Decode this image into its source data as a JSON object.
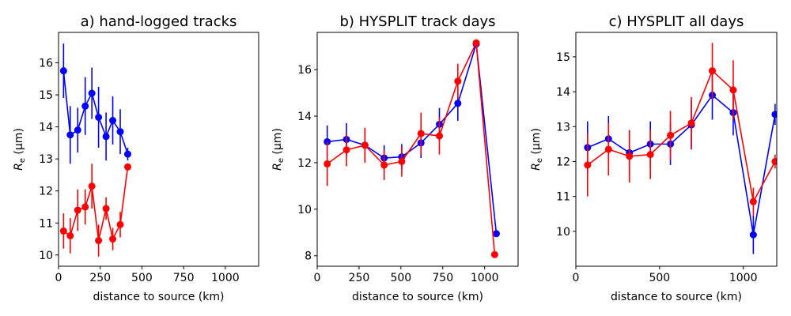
{
  "chart_data": [
    {
      "type": "line",
      "title": "a) hand-logged tracks",
      "xlabel": "distance to source (km)",
      "ylabel": "R_e (μm)",
      "ylabel_main": "R",
      "ylabel_sub": "e",
      "ylabel_unit": " (μm)",
      "xlim": [
        0,
        1200
      ],
      "ylim": [
        9.65,
        16.95
      ],
      "xticks": [
        0,
        250,
        500,
        750,
        1000
      ],
      "xtick_labels": [
        "0",
        "250",
        "500",
        "750",
        "1000"
      ],
      "yticks": [
        10,
        11,
        12,
        13,
        14,
        15,
        16
      ],
      "ytick_labels": [
        "10",
        "11",
        "12",
        "13",
        "14",
        "15",
        "16"
      ],
      "series": [
        {
          "name": "blue",
          "color": "#0000ff",
          "x": [
            30,
            70,
            115,
            160,
            200,
            240,
            285,
            325,
            370,
            415
          ],
          "y": [
            15.75,
            13.75,
            13.9,
            14.65,
            15.05,
            14.3,
            13.7,
            14.2,
            13.85,
            13.15
          ],
          "err": [
            0.85,
            0.9,
            0.7,
            0.9,
            0.8,
            0.95,
            0.75,
            0.75,
            0.7,
            0.2
          ]
        },
        {
          "name": "red",
          "color": "#ff0000",
          "x": [
            30,
            70,
            115,
            160,
            200,
            240,
            285,
            325,
            370,
            415
          ],
          "y": [
            10.75,
            10.6,
            11.4,
            11.5,
            12.15,
            10.45,
            11.45,
            10.5,
            10.95,
            12.75
          ],
          "err": [
            0.55,
            0.55,
            0.65,
            0.55,
            0.7,
            0.5,
            0.35,
            0.35,
            0.4,
            0.1
          ]
        }
      ]
    },
    {
      "type": "line",
      "title": "b) HYSPLIT track days",
      "xlabel": "distance to source (km)",
      "ylabel": "R_e (μm)",
      "ylabel_main": "R",
      "ylabel_sub": "e",
      "ylabel_unit": " (μm)",
      "xlim": [
        0,
        1200
      ],
      "ylim": [
        7.55,
        17.6
      ],
      "xticks": [
        0,
        250,
        500,
        750,
        1000
      ],
      "xtick_labels": [
        "0",
        "250",
        "500",
        "750",
        "1000"
      ],
      "yticks": [
        8,
        10,
        12,
        14,
        16
      ],
      "ytick_labels": [
        "8",
        "10",
        "12",
        "14",
        "16"
      ],
      "series": [
        {
          "name": "blue",
          "color": "#0000ff",
          "x": [
            60,
            175,
            285,
            400,
            505,
            620,
            730,
            840,
            950,
            1070
          ],
          "y": [
            12.9,
            13.0,
            12.75,
            12.2,
            12.25,
            12.85,
            13.65,
            14.55,
            17.1,
            8.95
          ],
          "err": [
            0.7,
            0.7,
            0.7,
            0.55,
            0.55,
            0.65,
            0.7,
            0.75,
            0.1,
            0.0
          ]
        },
        {
          "name": "red",
          "color": "#ff0000",
          "x": [
            60,
            175,
            285,
            400,
            505,
            620,
            730,
            840,
            950,
            1060
          ],
          "y": [
            11.95,
            12.55,
            12.75,
            11.9,
            12.05,
            13.25,
            13.15,
            15.5,
            17.15,
            8.05
          ],
          "err": [
            0.95,
            0.7,
            0.75,
            0.65,
            0.65,
            0.9,
            0.8,
            0.75,
            0.1,
            0.0
          ]
        }
      ]
    },
    {
      "type": "line",
      "title": "c) HYSPLIT all days",
      "xlabel": "distance to source (km)",
      "ylabel": "R_e (μm)",
      "ylabel_main": "R",
      "ylabel_sub": "e",
      "ylabel_unit": " (μm)",
      "xlim": [
        0,
        1200
      ],
      "ylim": [
        9.0,
        15.7
      ],
      "xticks": [
        0,
        500,
        1000
      ],
      "xtick_labels": [
        "0",
        "500",
        "1000"
      ],
      "yticks": [
        10,
        11,
        12,
        13,
        14,
        15
      ],
      "ytick_labels": [
        "10",
        "11",
        "12",
        "13",
        "14",
        "15"
      ],
      "series": [
        {
          "name": "blue",
          "color": "#0000ff",
          "x": [
            70,
            195,
            320,
            445,
            565,
            690,
            815,
            940,
            1060,
            1190
          ],
          "y": [
            12.4,
            12.65,
            12.25,
            12.5,
            12.5,
            13.05,
            13.9,
            13.4,
            9.9,
            13.35
          ],
          "err": [
            0.75,
            0.65,
            0.65,
            0.65,
            0.6,
            0.7,
            0.7,
            0.65,
            0.55,
            0.3
          ]
        },
        {
          "name": "red",
          "color": "#ff0000",
          "x": [
            70,
            195,
            320,
            445,
            565,
            690,
            815,
            940,
            1060,
            1190
          ],
          "y": [
            11.9,
            12.35,
            12.15,
            12.2,
            12.75,
            13.1,
            14.6,
            14.05,
            10.85,
            12.0
          ],
          "err": [
            0.9,
            0.75,
            0.75,
            0.7,
            0.7,
            0.75,
            0.8,
            0.85,
            0.4,
            0.2
          ]
        }
      ]
    }
  ]
}
